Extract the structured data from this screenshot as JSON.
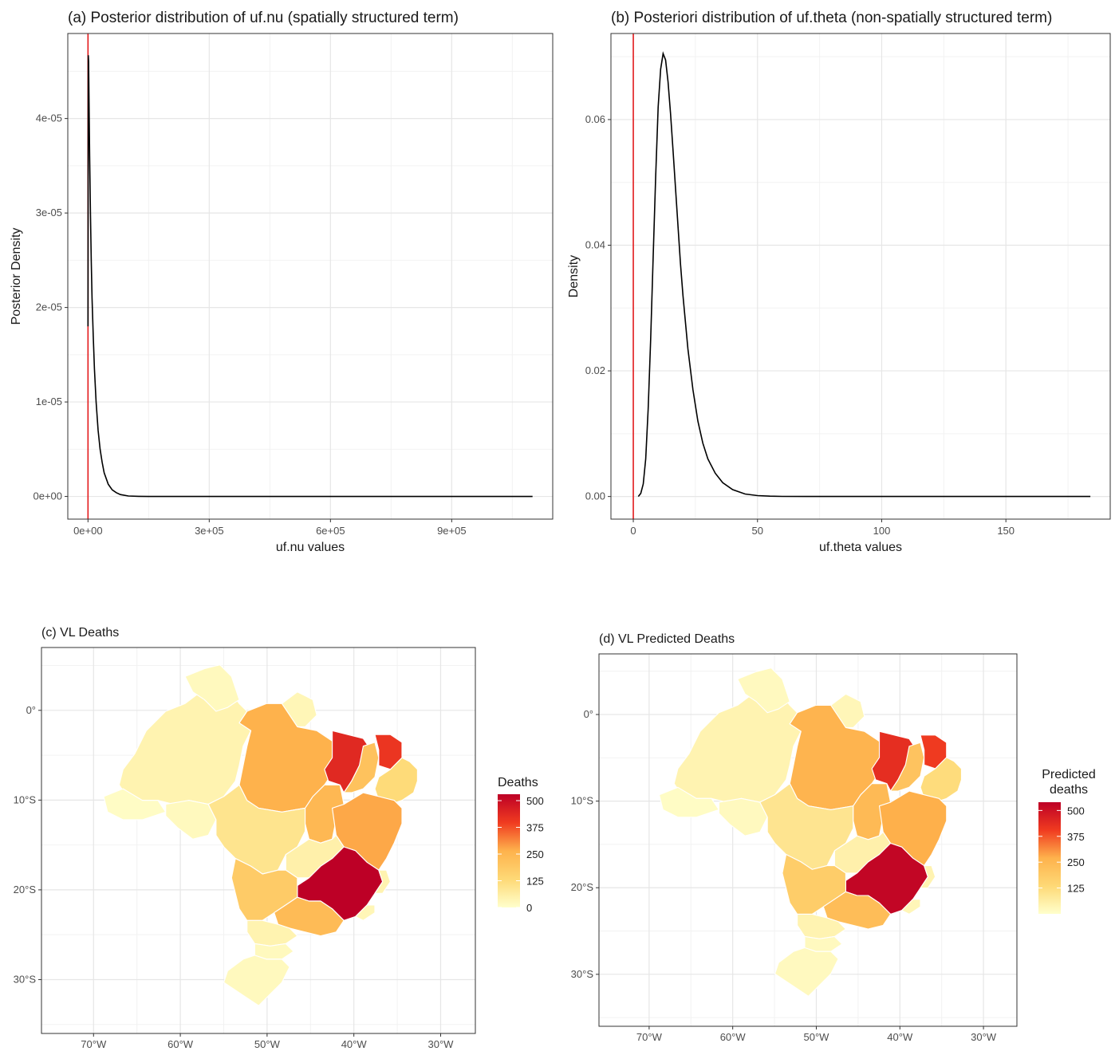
{
  "chart_data": [
    {
      "type": "line",
      "panel": "a",
      "title": "(a) Posterior distribution of uf.nu (spatially structured term)",
      "xlabel": "uf.nu values",
      "ylabel": "Posterior Density",
      "xlim": [
        -50000,
        1150000
      ],
      "ylim": [
        -2.4e-06,
        4.9e-05
      ],
      "x_ticks": [
        0,
        300000,
        600000,
        900000
      ],
      "x_tick_labels": [
        "0e+00",
        "3e+05",
        "6e+05",
        "9e+05"
      ],
      "y_ticks": [
        0,
        1e-05,
        2e-05,
        3e-05,
        4e-05
      ],
      "y_tick_labels": [
        "0e+00",
        "1e-05",
        "2e-05",
        "3e-05",
        "4e-05"
      ],
      "vline": 0,
      "vline_color": "#e31a1c",
      "grid": true,
      "series": [
        {
          "color": "#000000",
          "x": [
            0,
            800,
            1500,
            2500,
            4000,
            6000,
            8000,
            10000,
            13000,
            16000,
            20000,
            25000,
            30000,
            35000,
            40000,
            50000,
            60000,
            70000,
            80000,
            100000,
            125000,
            150000,
            200000,
            400000,
            700000,
            1100000
          ],
          "y": [
            1.8e-05,
            4.67e-05,
            4.6e-05,
            4.2e-05,
            3.6e-05,
            3e-05,
            2.5e-05,
            2.1e-05,
            1.7e-05,
            1.35e-05,
            1e-05,
            7e-06,
            5e-06,
            3.6e-06,
            2.5e-06,
            1.3e-06,
            7e-07,
            4e-07,
            2e-07,
            5e-08,
            1e-08,
            0,
            0,
            0,
            0,
            0
          ]
        }
      ]
    },
    {
      "type": "line",
      "panel": "b",
      "title": "(b) Posteriori distribution of uf.theta (non-spatially structured term)",
      "xlabel": "uf.theta values",
      "ylabel": "Density",
      "xlim": [
        -9,
        192
      ],
      "ylim": [
        -0.0036,
        0.0737
      ],
      "x_ticks": [
        0,
        50,
        100,
        150
      ],
      "x_tick_labels": [
        "0",
        "50",
        "100",
        "150"
      ],
      "y_ticks": [
        0,
        0.02,
        0.04,
        0.06
      ],
      "y_tick_labels": [
        "0.00",
        "0.02",
        "0.04",
        "0.06"
      ],
      "vline": 0,
      "vline_color": "#e31a1c",
      "grid": true,
      "series": [
        {
          "color": "#000000",
          "x": [
            2,
            3,
            4,
            5,
            6,
            7,
            8,
            9,
            10,
            11,
            12,
            13,
            14,
            15,
            16,
            17,
            18,
            19,
            20,
            22,
            24,
            26,
            28,
            30,
            33,
            36,
            40,
            45,
            50,
            55,
            60,
            70,
            80,
            100,
            120,
            150,
            184
          ],
          "y": [
            0,
            0.0005,
            0.002,
            0.006,
            0.014,
            0.025,
            0.038,
            0.051,
            0.062,
            0.068,
            0.0705,
            0.0695,
            0.066,
            0.061,
            0.055,
            0.049,
            0.043,
            0.037,
            0.032,
            0.0235,
            0.017,
            0.012,
            0.0085,
            0.006,
            0.0037,
            0.0022,
            0.0011,
            0.0004,
            0.00015,
            5e-05,
            2e-05,
            0,
            0,
            0,
            0,
            0,
            0
          ]
        }
      ]
    },
    {
      "type": "map",
      "panel": "c",
      "title": "(c) VL Deaths",
      "x_tick_labels": [
        "70°W",
        "60°W",
        "50°W",
        "40°W",
        "30°W"
      ],
      "y_tick_labels": [
        "0°",
        "10°S",
        "20°S",
        "30°S"
      ],
      "legend_title": [
        "Deaths"
      ],
      "legend_labels": [
        "500",
        "375",
        "250",
        "125",
        "0"
      ],
      "legend_placement": "right",
      "color_low": "#ffffcc",
      "color_high": "#bd0026"
    },
    {
      "type": "map",
      "panel": "d",
      "title": "(d) VL Predicted Deaths",
      "x_tick_labels": [
        "70°W",
        "60°W",
        "50°W",
        "40°W",
        "30°W"
      ],
      "y_tick_labels": [
        "0°",
        "10°S",
        "20°S",
        "30°S"
      ],
      "legend_title": [
        "Predicted",
        "deaths"
      ],
      "legend_labels": [
        "500",
        "375",
        "250",
        "125"
      ],
      "legend_placement": "right",
      "color_low": "#ffffcc",
      "color_high": "#bd0026"
    }
  ]
}
